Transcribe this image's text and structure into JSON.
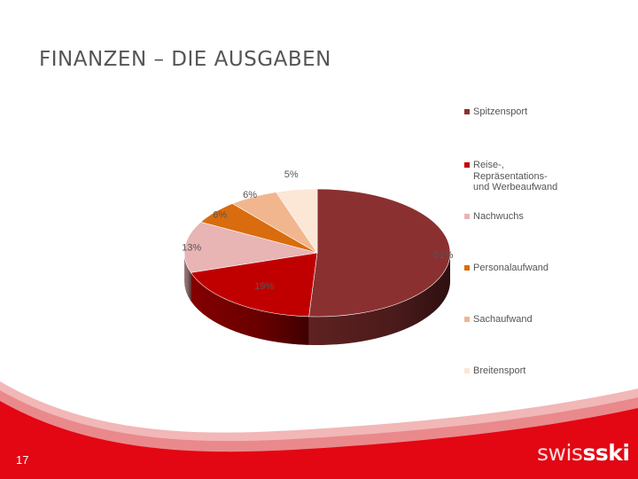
{
  "page": {
    "title": "FINANZEN – DIE AUSGABEN",
    "page_number": "17",
    "logo_light": "swis",
    "logo_bold": "sski"
  },
  "chart_data": {
    "type": "pie",
    "title": "",
    "categories": [
      "Spitzensport",
      "Reise-, Repräsentations- und Werbeaufwand",
      "Nachwuchs",
      "Personalaufwand",
      "Sachaufwand",
      "Breitensport"
    ],
    "legend_labels": [
      "Spitzensport",
      "Reise-,\nRepräsentations-\nund Werbeaufwand",
      "Nachwuchs",
      "Personalaufwand",
      "Sachaufwand",
      "Breitensport"
    ],
    "values": [
      51,
      19,
      13,
      6,
      6,
      5
    ],
    "labels": [
      "51%",
      "19%",
      "13%",
      "6%",
      "6%",
      "5%"
    ],
    "colors": [
      "#8B3030",
      "#C00000",
      "#E8B4B4",
      "#D96C0E",
      "#F2B68F",
      "#FCE6D6"
    ],
    "legend_position": "right"
  }
}
